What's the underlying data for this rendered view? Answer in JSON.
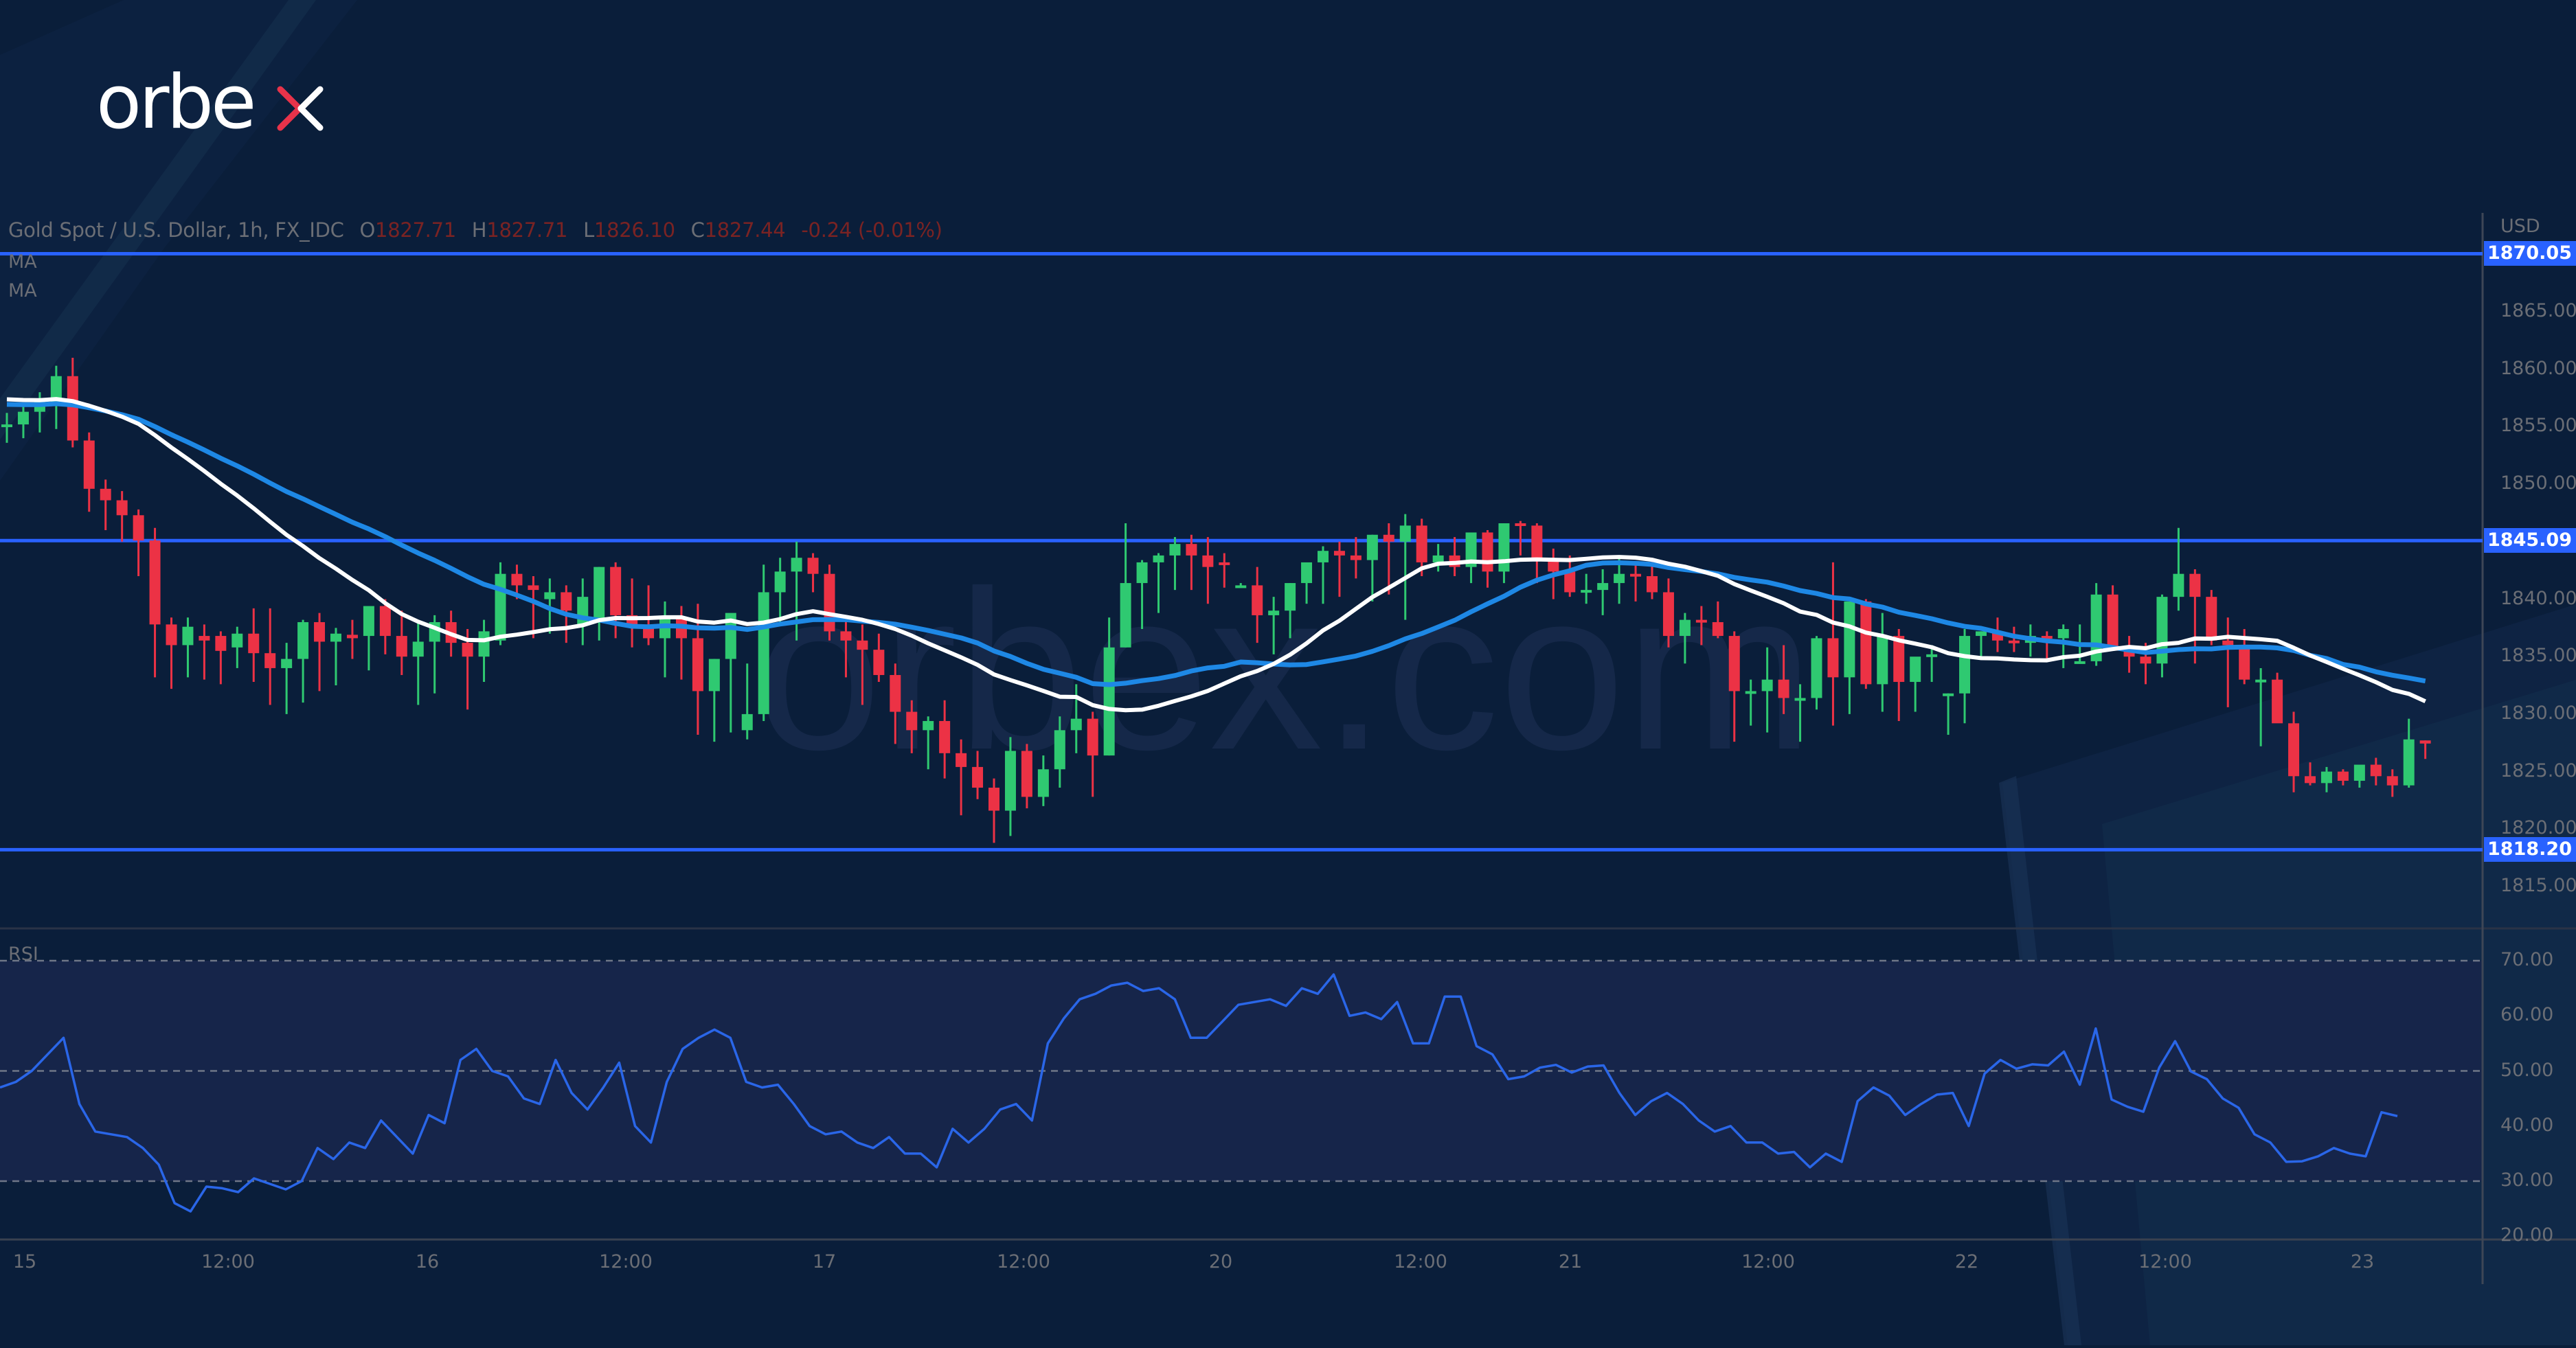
{
  "brand": {
    "logo_text_main": "orbe",
    "logo_text_accent": "x",
    "watermark": "orbex.com",
    "accent_color": "#e8334a"
  },
  "legend": {
    "symbol": "Gold Spot / U.S. Dollar, 1h, FX_IDC",
    "open_key": "O",
    "open": "1827.71",
    "high_key": "H",
    "high": "1827.71",
    "low_key": "L",
    "low": "1826.10",
    "close_key": "C",
    "close": "1827.44",
    "change": "-0.24 (-0.01%)",
    "ma1": "MA",
    "ma2": "MA"
  },
  "axis": {
    "currency": "USD",
    "price_ticks": [
      "1865.00",
      "1860.00",
      "1855.00",
      "1850.00",
      "1840.00",
      "1835.00",
      "1830.00",
      "1825.00",
      "1820.00",
      "1815.00"
    ],
    "rsi_label": "RSI",
    "rsi_ticks": [
      "70.00",
      "60.00",
      "50.00",
      "40.00",
      "30.00",
      "20.00"
    ],
    "time_ticks": [
      "15",
      "12:00",
      "16",
      "12:00",
      "17",
      "12:00",
      "20",
      "12:00",
      "21",
      "12:00",
      "22",
      "12:00",
      "23"
    ]
  },
  "levels": [
    {
      "value": 1870.05,
      "label": "1870.05"
    },
    {
      "value": 1845.09,
      "label": "1845.09"
    },
    {
      "value": 1818.2,
      "label": "1818.20"
    }
  ],
  "colors": {
    "up": "#2fc971",
    "down": "#ec3245",
    "ma_fast": "#ffffff",
    "ma_slow": "#1e88e5",
    "level": "#2962ff",
    "rsi": "#2a66e8",
    "background": "#0a1e3a",
    "rsi_band": "#16254a"
  },
  "chart_data": [
    {
      "type": "candlestick",
      "title": "Gold Spot / U.S. Dollar, 1h, FX_IDC",
      "xlabel": "",
      "ylabel": "USD",
      "ylim": [
        1812,
        1873
      ],
      "x_tick_labels": [
        "15",
        "12:00",
        "16",
        "12:00",
        "17",
        "12:00",
        "20",
        "12:00",
        "21",
        "12:00",
        "22",
        "12:00",
        "23"
      ],
      "horizontal_levels": [
        1870.05,
        1845.09,
        1818.2
      ],
      "last_bar": {
        "open": 1827.71,
        "high": 1827.71,
        "low": 1826.1,
        "close": 1827.44,
        "change": -0.24,
        "change_pct": -0.01
      },
      "ohlc": [
        [
          1855.0,
          1856.2,
          1853.6,
          1855.2
        ],
        [
          1855.2,
          1857.0,
          1854.0,
          1856.3
        ],
        [
          1856.3,
          1858.0,
          1854.5,
          1857.2
        ],
        [
          1857.0,
          1860.3,
          1854.8,
          1859.4
        ],
        [
          1859.4,
          1861.0,
          1853.2,
          1853.8
        ],
        [
          1853.8,
          1854.5,
          1847.6,
          1849.6
        ],
        [
          1849.6,
          1850.4,
          1846.0,
          1848.6
        ],
        [
          1848.6,
          1849.4,
          1845.0,
          1847.3
        ],
        [
          1847.3,
          1847.8,
          1842.0,
          1845.1
        ],
        [
          1845.1,
          1846.2,
          1833.2,
          1837.8
        ],
        [
          1837.8,
          1838.4,
          1832.2,
          1836.0
        ],
        [
          1836.0,
          1838.4,
          1833.2,
          1837.6
        ],
        [
          1836.8,
          1837.8,
          1833.0,
          1836.4
        ],
        [
          1836.8,
          1837.2,
          1832.6,
          1835.5
        ],
        [
          1835.8,
          1837.6,
          1834.0,
          1837.0
        ],
        [
          1837.0,
          1839.2,
          1832.8,
          1835.3
        ],
        [
          1835.3,
          1839.2,
          1830.8,
          1834.0
        ],
        [
          1834.0,
          1836.2,
          1830.0,
          1834.8
        ],
        [
          1834.8,
          1838.2,
          1831.0,
          1838.0
        ],
        [
          1838.0,
          1838.8,
          1832.0,
          1836.3
        ],
        [
          1836.3,
          1837.5,
          1832.5,
          1837.0
        ],
        [
          1836.9,
          1838.2,
          1834.8,
          1836.6
        ],
        [
          1836.8,
          1839.2,
          1833.8,
          1839.4
        ],
        [
          1839.4,
          1840.0,
          1835.2,
          1836.8
        ],
        [
          1836.8,
          1839.0,
          1833.4,
          1835.0
        ],
        [
          1835.0,
          1838.2,
          1830.8,
          1836.3
        ],
        [
          1836.3,
          1838.6,
          1831.8,
          1838.0
        ],
        [
          1838.0,
          1839.0,
          1835.0,
          1836.2
        ],
        [
          1836.2,
          1837.4,
          1830.4,
          1835.0
        ],
        [
          1835.0,
          1838.2,
          1832.8,
          1837.2
        ],
        [
          1836.4,
          1843.2,
          1836.0,
          1842.2
        ],
        [
          1842.2,
          1843.0,
          1840.0,
          1841.2
        ],
        [
          1841.2,
          1842.0,
          1836.6,
          1840.8
        ],
        [
          1840.0,
          1841.8,
          1837.0,
          1840.6
        ],
        [
          1840.6,
          1841.2,
          1836.2,
          1839.0
        ],
        [
          1837.8,
          1841.8,
          1836.0,
          1840.2
        ],
        [
          1838.0,
          1842.8,
          1836.4,
          1842.8
        ],
        [
          1842.8,
          1843.2,
          1836.6,
          1838.6
        ],
        [
          1838.6,
          1841.8,
          1835.8,
          1837.6
        ],
        [
          1837.6,
          1841.2,
          1836.0,
          1836.6
        ],
        [
          1836.6,
          1839.8,
          1833.2,
          1838.4
        ],
        [
          1838.4,
          1839.4,
          1833.0,
          1836.6
        ],
        [
          1836.6,
          1839.6,
          1828.2,
          1832.0
        ],
        [
          1832.0,
          1834.8,
          1827.6,
          1834.8
        ],
        [
          1834.8,
          1837.8,
          1828.4,
          1838.8
        ],
        [
          1828.6,
          1834.4,
          1827.8,
          1830.0
        ],
        [
          1830.0,
          1843.0,
          1829.4,
          1840.6
        ],
        [
          1840.6,
          1843.6,
          1837.8,
          1842.4
        ],
        [
          1842.4,
          1845.0,
          1836.4,
          1843.6
        ],
        [
          1843.6,
          1844.0,
          1840.6,
          1842.2
        ],
        [
          1842.2,
          1843.0,
          1836.4,
          1837.2
        ],
        [
          1837.2,
          1838.4,
          1833.2,
          1836.4
        ],
        [
          1836.4,
          1837.8,
          1830.8,
          1835.6
        ],
        [
          1835.6,
          1837.0,
          1832.8,
          1833.4
        ],
        [
          1833.4,
          1834.4,
          1827.4,
          1830.2
        ],
        [
          1830.2,
          1831.2,
          1826.6,
          1828.6
        ],
        [
          1828.6,
          1829.8,
          1825.2,
          1829.4
        ],
        [
          1829.4,
          1831.2,
          1824.4,
          1826.6
        ],
        [
          1826.6,
          1827.8,
          1821.2,
          1825.4
        ],
        [
          1825.4,
          1826.8,
          1822.6,
          1823.6
        ],
        [
          1823.6,
          1824.4,
          1818.8,
          1821.6
        ],
        [
          1821.6,
          1828.0,
          1819.4,
          1826.8
        ],
        [
          1826.8,
          1827.4,
          1821.8,
          1822.8
        ],
        [
          1822.8,
          1826.4,
          1822.0,
          1825.2
        ],
        [
          1825.2,
          1829.8,
          1823.6,
          1828.6
        ],
        [
          1828.6,
          1832.6,
          1826.6,
          1829.6
        ],
        [
          1829.6,
          1830.2,
          1822.8,
          1826.4
        ],
        [
          1826.4,
          1838.4,
          1826.4,
          1835.8
        ],
        [
          1835.8,
          1846.6,
          1835.8,
          1841.4
        ],
        [
          1841.4,
          1843.4,
          1837.4,
          1843.2
        ],
        [
          1843.2,
          1844.0,
          1838.8,
          1843.8
        ],
        [
          1843.8,
          1845.4,
          1840.8,
          1844.8
        ],
        [
          1844.8,
          1845.6,
          1840.8,
          1843.8
        ],
        [
          1843.8,
          1845.4,
          1839.6,
          1842.8
        ],
        [
          1843.2,
          1844.0,
          1841.0,
          1843.0
        ],
        [
          1841.2,
          1841.4,
          1841.0,
          1841.2
        ],
        [
          1841.2,
          1842.8,
          1836.2,
          1838.6
        ],
        [
          1838.6,
          1840.2,
          1835.2,
          1839.0
        ],
        [
          1839.0,
          1841.4,
          1836.6,
          1841.4
        ],
        [
          1841.4,
          1842.6,
          1839.6,
          1843.2
        ],
        [
          1843.2,
          1844.6,
          1839.6,
          1844.2
        ],
        [
          1844.2,
          1845.0,
          1840.2,
          1843.8
        ],
        [
          1843.8,
          1845.4,
          1841.8,
          1843.4
        ],
        [
          1843.4,
          1845.6,
          1839.8,
          1845.6
        ],
        [
          1845.6,
          1846.6,
          1840.4,
          1845.0
        ],
        [
          1845.0,
          1847.4,
          1838.2,
          1846.4
        ],
        [
          1846.4,
          1847.0,
          1842.0,
          1843.2
        ],
        [
          1843.2,
          1844.8,
          1842.4,
          1843.8
        ],
        [
          1843.8,
          1845.4,
          1842.0,
          1842.8
        ],
        [
          1842.8,
          1845.4,
          1841.4,
          1845.8
        ],
        [
          1845.8,
          1846.0,
          1841.0,
          1842.4
        ],
        [
          1842.4,
          1846.6,
          1841.4,
          1846.6
        ],
        [
          1846.6,
          1846.8,
          1843.8,
          1846.4
        ],
        [
          1846.4,
          1846.6,
          1841.4,
          1843.4
        ],
        [
          1843.4,
          1844.4,
          1840.0,
          1842.4
        ],
        [
          1842.4,
          1843.8,
          1840.2,
          1840.6
        ],
        [
          1840.6,
          1842.2,
          1839.6,
          1840.8
        ],
        [
          1840.8,
          1842.6,
          1838.6,
          1841.4
        ],
        [
          1841.4,
          1843.8,
          1839.6,
          1842.2
        ],
        [
          1842.2,
          1843.0,
          1839.8,
          1842.0
        ],
        [
          1842.0,
          1843.4,
          1840.0,
          1840.6
        ],
        [
          1840.6,
          1841.8,
          1835.8,
          1836.8
        ],
        [
          1836.8,
          1838.8,
          1834.4,
          1838.2
        ],
        [
          1838.2,
          1839.4,
          1836.0,
          1838.0
        ],
        [
          1838.0,
          1839.8,
          1836.6,
          1836.8
        ],
        [
          1836.8,
          1837.2,
          1827.6,
          1832.0
        ],
        [
          1832.0,
          1833.0,
          1829.0,
          1832.0
        ],
        [
          1832.0,
          1835.8,
          1828.4,
          1833.0
        ],
        [
          1833.0,
          1836.0,
          1830.0,
          1831.4
        ],
        [
          1831.4,
          1832.6,
          1827.6,
          1831.4
        ],
        [
          1831.4,
          1836.8,
          1830.4,
          1836.6
        ],
        [
          1836.6,
          1843.2,
          1829.0,
          1833.2
        ],
        [
          1833.2,
          1839.4,
          1830.0,
          1839.8
        ],
        [
          1839.8,
          1840.0,
          1832.2,
          1832.6
        ],
        [
          1832.6,
          1838.8,
          1830.2,
          1836.8
        ],
        [
          1836.8,
          1837.4,
          1829.4,
          1832.8
        ],
        [
          1832.8,
          1834.8,
          1830.2,
          1835.0
        ],
        [
          1835.0,
          1836.0,
          1832.8,
          1835.2
        ],
        [
          1831.8,
          1831.8,
          1828.2,
          1831.8
        ],
        [
          1831.8,
          1837.4,
          1829.2,
          1836.8
        ],
        [
          1836.8,
          1837.2,
          1834.8,
          1837.2
        ],
        [
          1837.2,
          1838.4,
          1835.4,
          1836.4
        ],
        [
          1836.4,
          1837.6,
          1835.4,
          1836.2
        ],
        [
          1836.2,
          1837.8,
          1835.0,
          1836.8
        ],
        [
          1836.8,
          1837.2,
          1834.6,
          1836.6
        ],
        [
          1836.6,
          1837.8,
          1834.0,
          1837.4
        ],
        [
          1834.6,
          1837.8,
          1834.4,
          1834.6
        ],
        [
          1834.6,
          1841.4,
          1834.2,
          1840.4
        ],
        [
          1840.4,
          1841.2,
          1835.6,
          1835.6
        ],
        [
          1835.6,
          1836.8,
          1833.6,
          1835.0
        ],
        [
          1835.0,
          1836.2,
          1832.6,
          1834.4
        ],
        [
          1834.4,
          1840.4,
          1833.2,
          1840.2
        ],
        [
          1840.2,
          1846.2,
          1839.0,
          1842.2
        ],
        [
          1842.2,
          1842.6,
          1834.4,
          1840.2
        ],
        [
          1840.2,
          1840.8,
          1836.0,
          1836.4
        ],
        [
          1836.4,
          1838.4,
          1830.6,
          1836.0
        ],
        [
          1836.0,
          1837.4,
          1832.6,
          1833.0
        ],
        [
          1833.0,
          1834.0,
          1827.2,
          1833.0
        ],
        [
          1833.0,
          1833.6,
          1829.4,
          1829.2
        ],
        [
          1829.2,
          1830.2,
          1823.2,
          1824.6
        ],
        [
          1824.6,
          1825.8,
          1823.8,
          1824.0
        ],
        [
          1824.0,
          1825.4,
          1823.2,
          1825.0
        ],
        [
          1825.0,
          1825.2,
          1823.8,
          1824.2
        ],
        [
          1824.2,
          1825.2,
          1823.6,
          1825.6
        ],
        [
          1825.6,
          1826.2,
          1823.8,
          1824.6
        ],
        [
          1824.6,
          1825.2,
          1822.8,
          1823.8
        ],
        [
          1823.8,
          1829.6,
          1823.6,
          1827.8
        ],
        [
          1827.71,
          1827.71,
          1826.1,
          1827.44
        ]
      ],
      "ma_fast": {
        "name": "MA",
        "color": "#ffffff"
      },
      "ma_slow": {
        "name": "MA",
        "color": "#1e88e5"
      }
    },
    {
      "type": "line",
      "title": "RSI",
      "ylim": [
        18,
        74
      ],
      "bands": [
        30,
        50,
        70
      ],
      "y_tick_labels": [
        "70.00",
        "60.00",
        "50.00",
        "40.00",
        "30.00",
        "20.00"
      ],
      "values": [
        47,
        48,
        50,
        53,
        56,
        44,
        39,
        38.5,
        38,
        36,
        33,
        26,
        24.5,
        29,
        28.7,
        28,
        30.5,
        29.5,
        28.5,
        30,
        36,
        34,
        37,
        36,
        41,
        38,
        35,
        42,
        40.5,
        52,
        54,
        50,
        49,
        45,
        44,
        52,
        46,
        43,
        47,
        51.5,
        40,
        37,
        48,
        54,
        56,
        57.5,
        56,
        48,
        47,
        47.5,
        44,
        40,
        38.5,
        39,
        37,
        36,
        38,
        35,
        35,
        32.5,
        39.5,
        37,
        39.5,
        43,
        44,
        41,
        55,
        59.5,
        63,
        64,
        65.5,
        66,
        64.5,
        65,
        63,
        56,
        56,
        59,
        62,
        62.5,
        63,
        61.8,
        65,
        64,
        67.5,
        60,
        60.6,
        59.4,
        62.5,
        55,
        55,
        63.5,
        63.5,
        54.5,
        53,
        48.5,
        49,
        50.6,
        51.1,
        49.7,
        50.8,
        51,
        46,
        42,
        44.5,
        46,
        44,
        41,
        39,
        40,
        37,
        37,
        35,
        35.3,
        32.5,
        35,
        33.5,
        44.5,
        47,
        45.5,
        42,
        44,
        45.7,
        46,
        40,
        49.5,
        52,
        50.4,
        51.2,
        51,
        53.5,
        47.5,
        57.7,
        44.8,
        43.5,
        42.6,
        50.6,
        55.4,
        49.9,
        48.5,
        45,
        43.3,
        38.5,
        37,
        33.5,
        33.6,
        34.5,
        36,
        35,
        34.5,
        42.5,
        41.8
      ]
    }
  ]
}
